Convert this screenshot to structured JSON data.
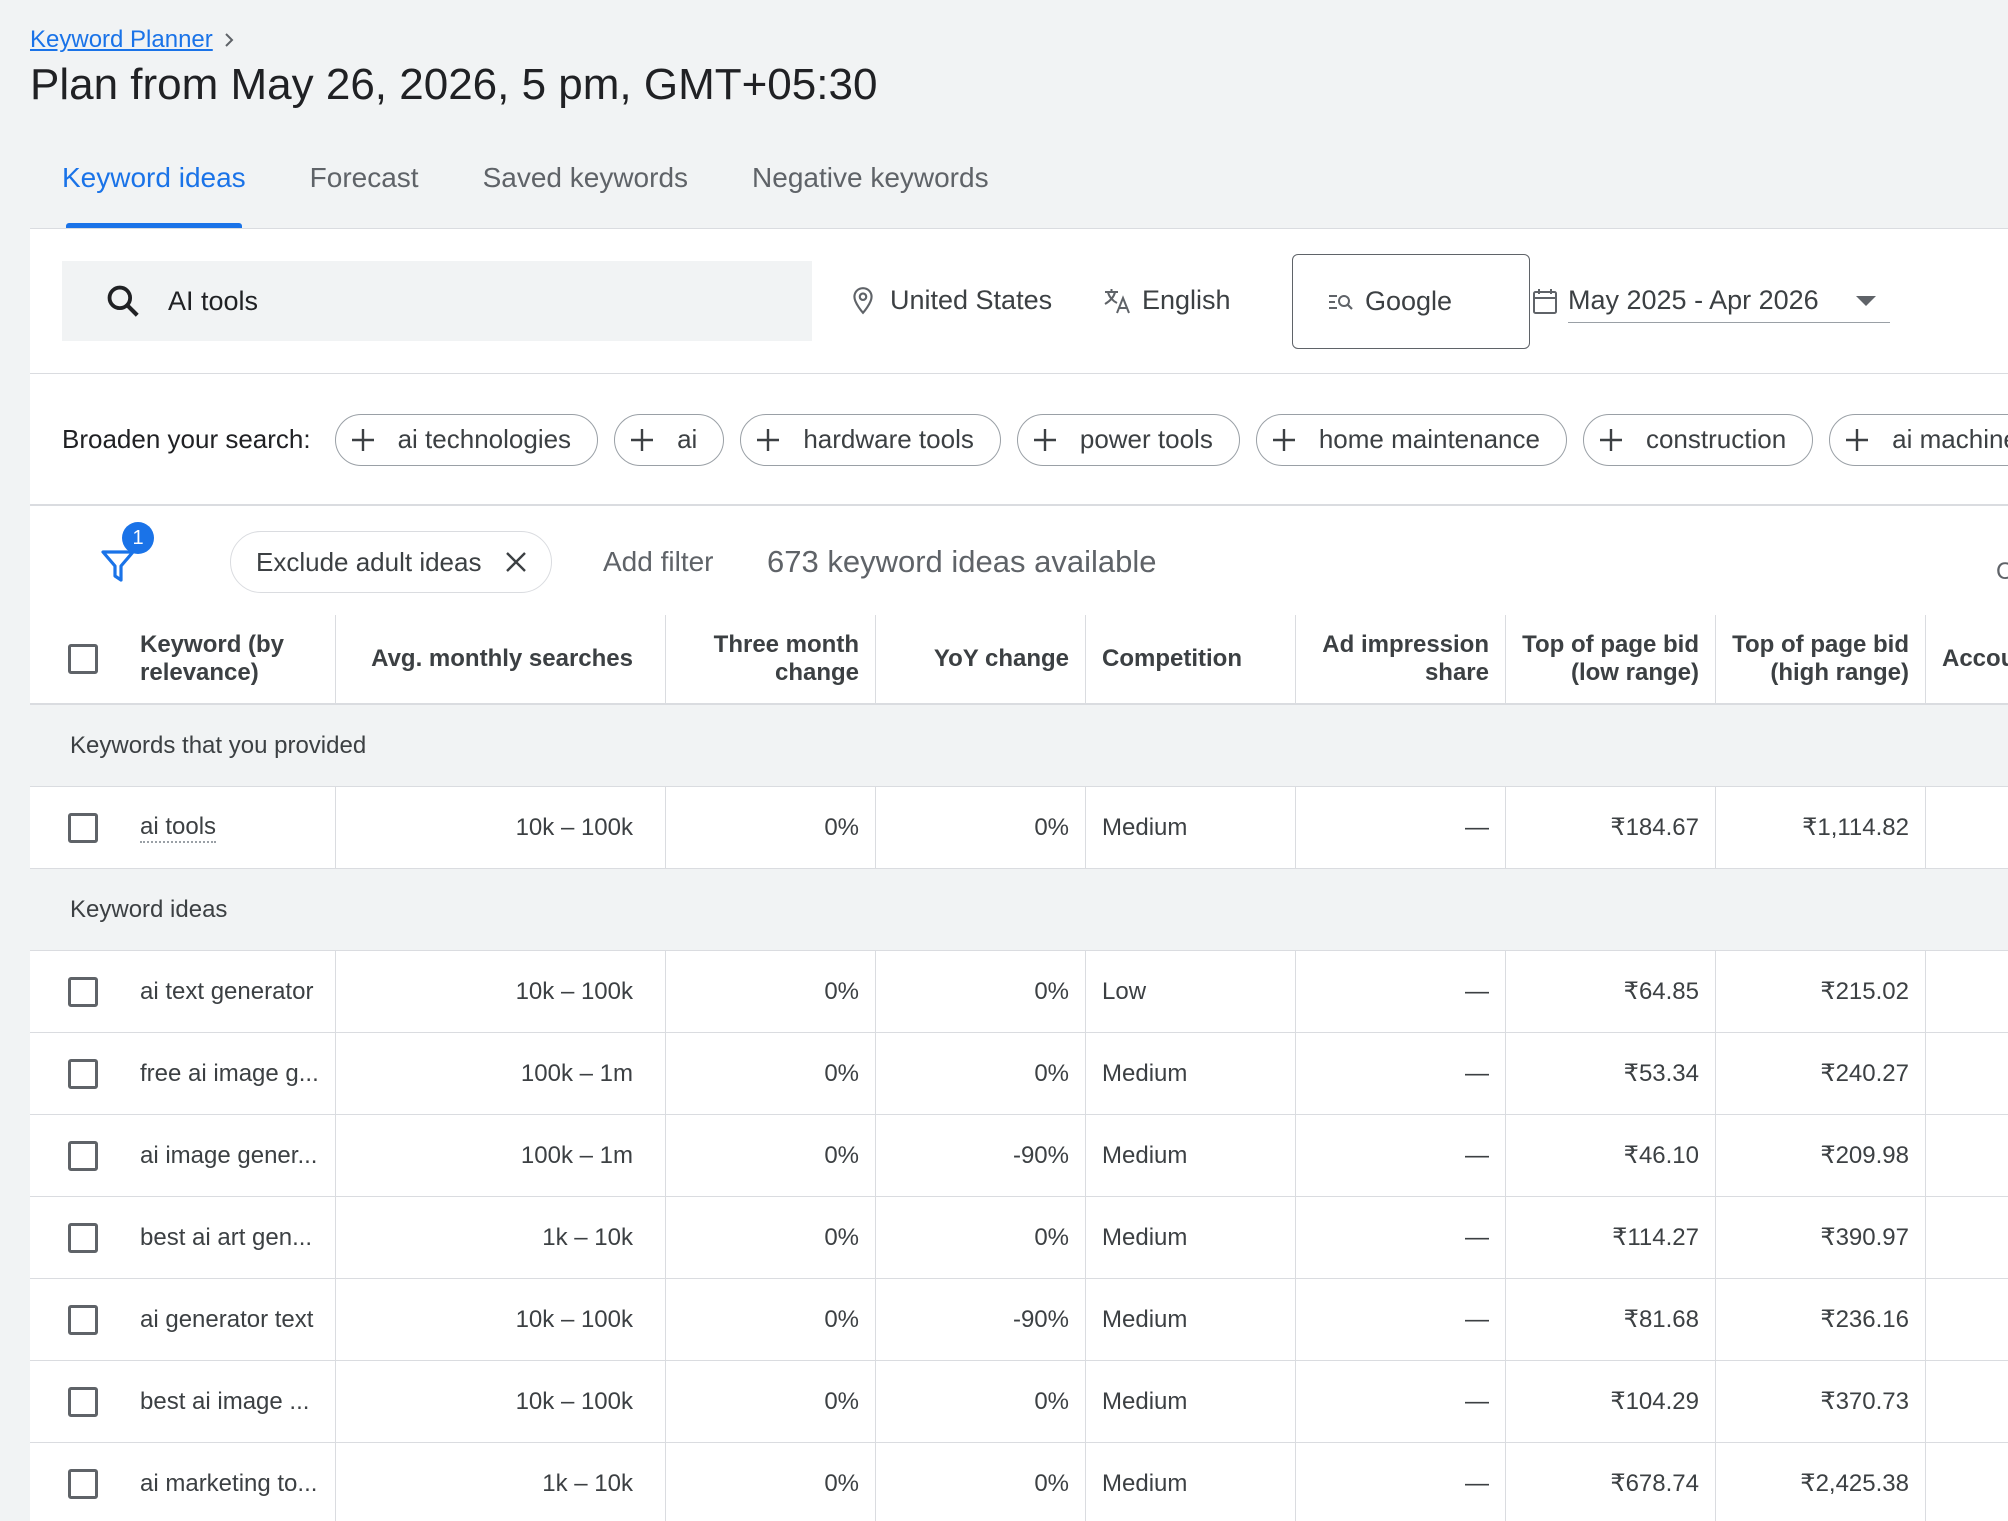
{
  "breadcrumb": {
    "label": "Keyword Planner"
  },
  "page": {
    "title": "Plan from May 26, 2026, 5 pm, GMT+05:30"
  },
  "tabs": [
    {
      "label": "Keyword ideas",
      "active": true
    },
    {
      "label": "Forecast"
    },
    {
      "label": "Saved keywords"
    },
    {
      "label": "Negative keywords"
    }
  ],
  "search": {
    "value": "AI tools"
  },
  "location": {
    "label": "United States"
  },
  "language": {
    "label": "English"
  },
  "network": {
    "label": "Google"
  },
  "date_range": {
    "label": "May 2025 - Apr 2026"
  },
  "broaden": {
    "label": "Broaden your search:",
    "chips": [
      "ai technologies",
      "ai",
      "hardware tools",
      "power tools",
      "home maintenance",
      "construction",
      "ai machine"
    ]
  },
  "filters": {
    "badge_count": "1",
    "exclude_chip": "Exclude adult ideas",
    "add_filter": "Add filter",
    "count_text": "673 keyword ideas available",
    "edge_letter": "C"
  },
  "table": {
    "columns": {
      "keyword": "Keyword (by relevance)",
      "avg": "Avg. monthly searches",
      "three": "Three month change",
      "yoy": "YoY change",
      "comp": "Competition",
      "imp": "Ad impression share",
      "low": "Top of page bid (low range)",
      "high": "Top of page bid (high range)",
      "acc": "Accou"
    },
    "provided_section": "Keywords that you provided",
    "provided": [
      {
        "keyword": "ai tools",
        "avg": "10k – 100k",
        "three": "0%",
        "yoy": "0%",
        "comp": "Medium",
        "imp": "—",
        "low": "₹184.67",
        "high": "₹1,114.82"
      }
    ],
    "ideas_section": "Keyword ideas",
    "ideas": [
      {
        "keyword": "ai text generator",
        "avg": "10k – 100k",
        "three": "0%",
        "yoy": "0%",
        "comp": "Low",
        "imp": "—",
        "low": "₹64.85",
        "high": "₹215.02"
      },
      {
        "keyword": "free ai image g...",
        "avg": "100k – 1m",
        "three": "0%",
        "yoy": "0%",
        "comp": "Medium",
        "imp": "—",
        "low": "₹53.34",
        "high": "₹240.27"
      },
      {
        "keyword": "ai image gener...",
        "avg": "100k – 1m",
        "three": "0%",
        "yoy": "-90%",
        "comp": "Medium",
        "imp": "—",
        "low": "₹46.10",
        "high": "₹209.98"
      },
      {
        "keyword": "best ai art gen...",
        "avg": "1k – 10k",
        "three": "0%",
        "yoy": "0%",
        "comp": "Medium",
        "imp": "—",
        "low": "₹114.27",
        "high": "₹390.97"
      },
      {
        "keyword": "ai generator text",
        "avg": "10k – 100k",
        "three": "0%",
        "yoy": "-90%",
        "comp": "Medium",
        "imp": "—",
        "low": "₹81.68",
        "high": "₹236.16"
      },
      {
        "keyword": "best ai image ...",
        "avg": "10k – 100k",
        "three": "0%",
        "yoy": "0%",
        "comp": "Medium",
        "imp": "—",
        "low": "₹104.29",
        "high": "₹370.73"
      },
      {
        "keyword": "ai marketing to...",
        "avg": "1k – 10k",
        "three": "0%",
        "yoy": "0%",
        "comp": "Medium",
        "imp": "—",
        "low": "₹678.74",
        "high": "₹2,425.38"
      }
    ]
  }
}
